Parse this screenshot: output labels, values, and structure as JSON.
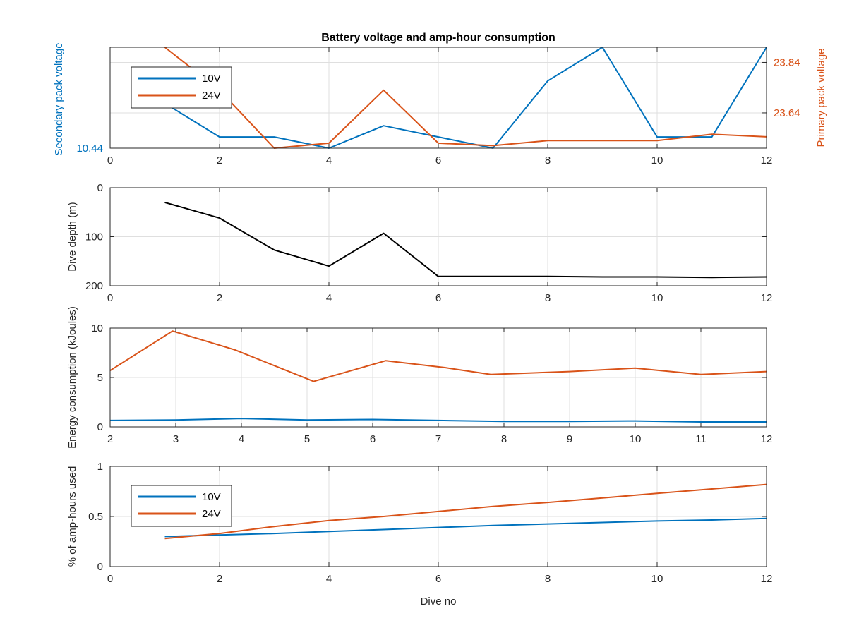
{
  "figure": {
    "title": "Battery voltage and amp-hour consumption",
    "xlabel": "Dive no"
  },
  "colors": {
    "blue": "#0072bd",
    "orange": "#d95319",
    "black": "#000000",
    "axis": "#262626",
    "grid": "#dfdfdf"
  },
  "chart_data": [
    {
      "type": "line",
      "panel": "voltage",
      "ylabel_left": "Secondary pack voltage",
      "ylabel_right": "Primary pack voltage",
      "xlim": [
        0,
        12
      ],
      "xticks": [
        0,
        2,
        4,
        6,
        8,
        10,
        12
      ],
      "ylim_left": [
        10.44,
        10.62
      ],
      "yticks_left": [
        10.44
      ],
      "ylim_right": [
        23.5,
        23.9
      ],
      "yticks_right": [
        23.64,
        23.84
      ],
      "grid": true,
      "legend": {
        "placement": "top-left",
        "entries": [
          "10V",
          "24V"
        ]
      },
      "series": [
        {
          "name": "10V",
          "axis": "left",
          "color": "#0072bd",
          "x": [
            1,
            2,
            3,
            4,
            5,
            6,
            7,
            8,
            9,
            10,
            11,
            12
          ],
          "y": [
            10.52,
            10.46,
            10.46,
            10.44,
            10.48,
            10.46,
            10.44,
            10.56,
            10.62,
            10.46,
            10.46,
            10.62
          ]
        },
        {
          "name": "24V",
          "axis": "right",
          "color": "#d95319",
          "x": [
            1,
            2,
            3,
            4,
            5,
            6,
            7,
            8,
            9,
            10,
            11,
            12
          ],
          "y": [
            23.9,
            23.73,
            23.5,
            23.52,
            23.73,
            23.52,
            23.51,
            23.53,
            23.53,
            23.53,
            23.555,
            23.545
          ]
        }
      ]
    },
    {
      "type": "line",
      "panel": "depth",
      "ylabel": "Dive depth (m)",
      "xlim": [
        0,
        12
      ],
      "xticks": [
        0,
        2,
        4,
        6,
        8,
        10,
        12
      ],
      "ylim": [
        0,
        200
      ],
      "yticks": [
        0,
        100,
        200
      ],
      "ytick_labels": [
        "0",
        "100",
        "200"
      ],
      "y_reversed": true,
      "grid": true,
      "series": [
        {
          "color": "#000000",
          "x": [
            1,
            2,
            3,
            4,
            5,
            6,
            7,
            8,
            9,
            10,
            11,
            12
          ],
          "y": [
            30,
            62,
            127,
            160,
            93,
            181,
            181,
            181,
            182,
            182,
            183,
            182
          ]
        }
      ]
    },
    {
      "type": "line",
      "panel": "energy",
      "ylabel": "Energy consumption (kJoules)",
      "xlim": [
        2,
        12
      ],
      "xticks": [
        2,
        3,
        4,
        5,
        6,
        7,
        8,
        9,
        10,
        11,
        12
      ],
      "ylim": [
        0,
        10
      ],
      "yticks": [
        0,
        5,
        10
      ],
      "grid": true,
      "series": [
        {
          "color": "#d95319",
          "x": [
            2,
            2.95,
            3.9,
            5.1,
            6.2,
            7.1,
            7.8,
            9,
            10,
            11,
            12
          ],
          "y": [
            5.7,
            9.7,
            7.8,
            4.6,
            6.7,
            6.0,
            5.3,
            5.6,
            5.95,
            5.3,
            5.6
          ]
        },
        {
          "color": "#0072bd",
          "x": [
            2,
            3,
            4,
            5,
            6,
            7,
            8,
            9,
            10,
            11,
            12
          ],
          "y": [
            0.65,
            0.7,
            0.85,
            0.7,
            0.75,
            0.65,
            0.55,
            0.55,
            0.6,
            0.5,
            0.5
          ]
        }
      ]
    },
    {
      "type": "line",
      "panel": "amp-hours",
      "ylabel": "% of amp-hours used",
      "xlim": [
        0,
        12
      ],
      "xticks": [
        0,
        2,
        4,
        6,
        8,
        10,
        12
      ],
      "ylim": [
        0,
        1
      ],
      "yticks": [
        0,
        0.5,
        1
      ],
      "ytick_labels": [
        "0",
        "0.5",
        "1"
      ],
      "grid": true,
      "legend": {
        "placement": "top-left",
        "entries": [
          "10V",
          "24V"
        ]
      },
      "series": [
        {
          "name": "10V",
          "color": "#0072bd",
          "x": [
            1,
            2,
            3,
            4,
            5,
            6,
            7,
            8,
            9,
            10,
            11,
            12
          ],
          "y": [
            0.3,
            0.315,
            0.33,
            0.35,
            0.37,
            0.39,
            0.41,
            0.425,
            0.44,
            0.455,
            0.465,
            0.48
          ]
        },
        {
          "name": "24V",
          "color": "#d95319",
          "x": [
            1,
            2,
            3,
            4,
            5,
            6,
            7,
            8,
            9,
            10,
            11,
            12
          ],
          "y": [
            0.28,
            0.33,
            0.4,
            0.46,
            0.5,
            0.55,
            0.6,
            0.64,
            0.685,
            0.73,
            0.775,
            0.82
          ]
        }
      ]
    }
  ]
}
